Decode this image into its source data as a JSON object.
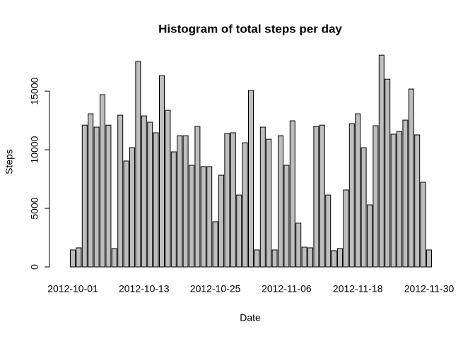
{
  "chart_data": {
    "type": "bar",
    "title": "Histogram of total steps per day",
    "x_label": "Date",
    "y_label": "Steps",
    "categories": [
      "2012-10-01",
      null,
      null,
      null,
      null,
      null,
      null,
      null,
      null,
      null,
      null,
      null,
      "2012-10-13",
      null,
      null,
      null,
      null,
      null,
      null,
      null,
      null,
      null,
      null,
      null,
      "2012-10-25",
      null,
      null,
      null,
      null,
      null,
      null,
      null,
      null,
      null,
      null,
      null,
      "2012-11-06",
      null,
      null,
      null,
      null,
      null,
      null,
      null,
      null,
      null,
      null,
      null,
      "2012-11-18",
      null,
      null,
      null,
      null,
      null,
      null,
      null,
      null,
      null,
      null,
      null,
      "2012-11-30"
    ],
    "values": [
      1450,
      1630,
      12100,
      13070,
      11930,
      14700,
      12100,
      1570,
      12950,
      9040,
      10180,
      17530,
      12890,
      12350,
      11450,
      16330,
      13370,
      9820,
      11200,
      11200,
      8680,
      12000,
      8560,
      8560,
      3860,
      7830,
      11390,
      11450,
      6140,
      10600,
      15060,
      1450,
      11930,
      10900,
      1450,
      11200,
      8680,
      12470,
      3740,
      1690,
      1630,
      12000,
      12100,
      6140,
      1390,
      1570,
      6570,
      12230,
      13070,
      10180,
      5300,
      12050,
      18070,
      16020,
      11330,
      11570,
      12530,
      15180,
      11270,
      7230,
      1450
    ],
    "color": "#bebebe",
    "ylim": [
      0,
      18800
    ],
    "yticks": [
      0,
      5000,
      10000,
      15000
    ]
  }
}
